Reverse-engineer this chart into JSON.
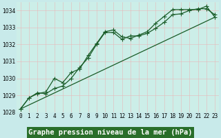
{
  "background_color": "#c8eaea",
  "plot_bg_color": "#cceee8",
  "grid_color_v": "#b8d8d0",
  "grid_color_h": "#e8b8b8",
  "line_color": "#1a5c28",
  "title_bg": "#2a6e2a",
  "title_fg": "#ffffff",
  "xlabel": "Graphe pression niveau de la mer (hPa)",
  "ylim": [
    1028.0,
    1034.5
  ],
  "xlim": [
    -0.5,
    23.5
  ],
  "yticks": [
    1028,
    1029,
    1030,
    1031,
    1032,
    1033,
    1034
  ],
  "xticks": [
    0,
    1,
    2,
    3,
    4,
    5,
    6,
    7,
    8,
    9,
    10,
    11,
    12,
    13,
    14,
    15,
    16,
    17,
    18,
    19,
    20,
    21,
    22,
    23
  ],
  "series1_x": [
    0,
    1,
    2,
    3,
    4,
    5,
    6,
    7,
    8,
    9,
    10,
    11,
    12,
    13,
    14,
    15,
    16,
    17,
    18,
    19,
    20,
    21,
    22,
    23
  ],
  "series1_y": [
    1028.2,
    1028.85,
    1029.1,
    1029.2,
    1030.0,
    1029.75,
    1030.35,
    1030.55,
    1031.35,
    1032.05,
    1032.75,
    1032.85,
    1032.45,
    1032.35,
    1032.55,
    1032.75,
    1033.25,
    1033.65,
    1034.05,
    1034.05,
    1034.05,
    1034.05,
    1034.25,
    1033.6
  ],
  "series2_x": [
    0,
    1,
    2,
    3,
    4,
    5,
    6,
    7,
    8,
    9,
    10,
    11,
    12,
    13,
    14,
    15,
    16,
    17,
    18,
    19,
    20,
    21,
    22,
    23
  ],
  "series2_y": [
    1028.2,
    1028.85,
    1029.15,
    1029.1,
    1029.4,
    1029.55,
    1030.0,
    1030.65,
    1031.2,
    1032.0,
    1032.7,
    1032.7,
    1032.3,
    1032.5,
    1032.5,
    1032.65,
    1032.95,
    1033.3,
    1033.75,
    1033.8,
    1034.0,
    1034.1,
    1034.1,
    1033.75
  ],
  "series3_x": [
    0,
    23
  ],
  "series3_y": [
    1028.2,
    1033.6
  ],
  "tick_fontsize": 5.5,
  "label_fontsize": 7.5,
  "linewidth": 0.9,
  "markersize": 2.8
}
